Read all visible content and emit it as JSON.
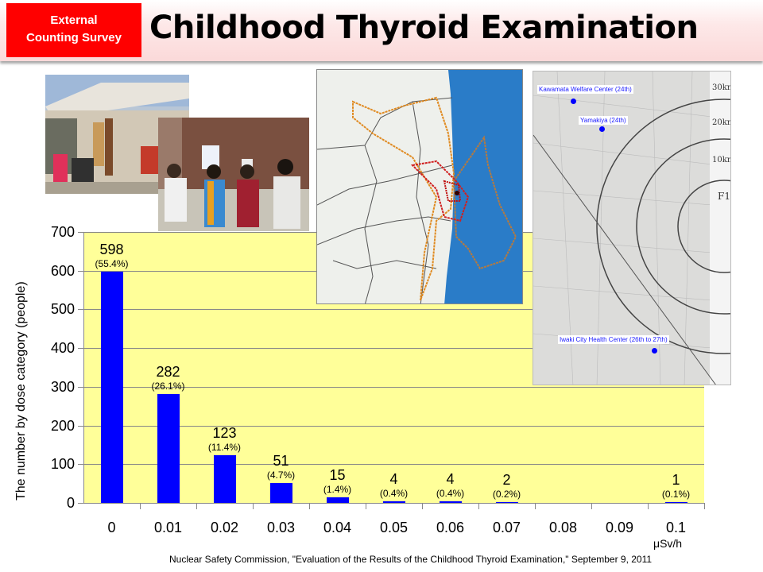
{
  "header": {
    "tag_line1": "External",
    "tag_line2": "Counting Survey",
    "tag_color": "#ff0000",
    "title": "Childhood Thyroid Examination"
  },
  "photos": [
    {
      "name": "building-entrance-photo",
      "description": "Welfare center building entrance with people seated outside"
    },
    {
      "name": "examination-room-photo",
      "description": "Children being examined by doctor in room"
    }
  ],
  "fallout_map": {
    "description": "Fukushima prefecture map with orange and red contamination contour lines and blue ocean"
  },
  "location_map": {
    "labels": [
      {
        "text": "Kawamata Welfare Center (24th)"
      },
      {
        "text": "Yamakiya (24th)"
      },
      {
        "text": "Iwaki City Health Center (26th to 27th)"
      }
    ],
    "distance_rings": [
      "30km",
      "20km",
      "10km"
    ],
    "plant_label": "F1"
  },
  "chart_data": {
    "type": "bar",
    "title": "",
    "xlabel": "μSv/h",
    "ylabel": "The number by dose category (people)",
    "categories": [
      "0",
      "0.01",
      "0.02",
      "0.03",
      "0.04",
      "0.05",
      "0.06",
      "0.07",
      "0.08",
      "0.09",
      "0.1"
    ],
    "values": [
      598,
      282,
      123,
      51,
      15,
      4,
      4,
      2,
      0,
      0,
      1
    ],
    "percent_labels": [
      "(55.4%)",
      "(26.1%)",
      "(11.4%)",
      "(4.7%)",
      "(1.4%)",
      "(0.4%)",
      "(0.4%)",
      "(0.2%)",
      "",
      "",
      "(0.1%)"
    ],
    "value_labels": [
      "598",
      "282",
      "123",
      "51",
      "15",
      "4",
      "4",
      "2",
      "",
      "",
      "1"
    ],
    "yticks": [
      "0",
      "100",
      "200",
      "300",
      "400",
      "500",
      "600",
      "700"
    ],
    "ylim": [
      0,
      700
    ],
    "grid": true,
    "bar_color": "#0000ff",
    "plot_background": "#ffff99",
    "legend": null
  },
  "source": "Nuclear Safety Commission, \"Evaluation of the Results of the Childhood Thyroid Examination,\" September 9, 2011"
}
